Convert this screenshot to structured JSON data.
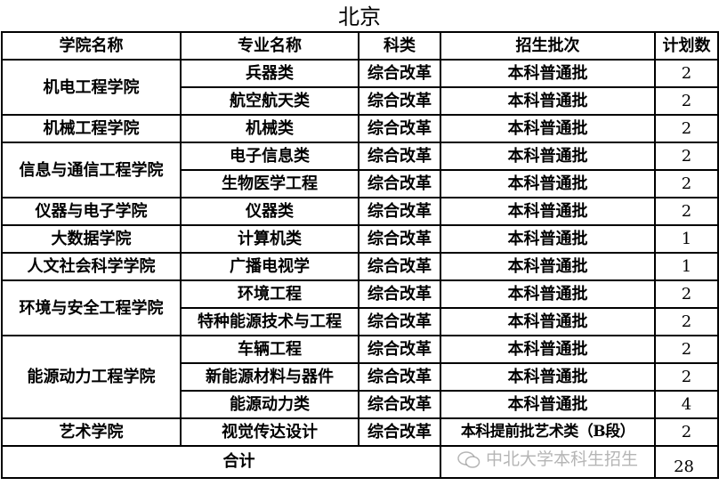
{
  "title": "北京",
  "headers": [
    "学院名称",
    "专业名称",
    "科类",
    "招生批次",
    "计划数"
  ],
  "groups": [
    {
      "college": "机电工程学院",
      "rows": [
        {
          "major": "兵器类",
          "category": "综合改革",
          "batch": "本科普通批",
          "plan": "2"
        },
        {
          "major": "航空航天类",
          "category": "综合改革",
          "batch": "本科普通批",
          "plan": "2"
        }
      ]
    },
    {
      "college": "机械工程学院",
      "rows": [
        {
          "major": "机械类",
          "category": "综合改革",
          "batch": "本科普通批",
          "plan": "2"
        }
      ]
    },
    {
      "college": "信息与通信工程学院",
      "rows": [
        {
          "major": "电子信息类",
          "category": "综合改革",
          "batch": "本科普通批",
          "plan": "2"
        },
        {
          "major": "生物医学工程",
          "category": "综合改革",
          "batch": "本科普通批",
          "plan": "2"
        }
      ]
    },
    {
      "college": "仪器与电子学院",
      "rows": [
        {
          "major": "仪器类",
          "category": "综合改革",
          "batch": "本科普通批",
          "plan": "2"
        }
      ]
    },
    {
      "college": "大数据学院",
      "rows": [
        {
          "major": "计算机类",
          "category": "综合改革",
          "batch": "本科普通批",
          "plan": "1"
        }
      ]
    },
    {
      "college": "人文社会科学学院",
      "rows": [
        {
          "major": "广播电视学",
          "category": "综合改革",
          "batch": "本科普通批",
          "plan": "1"
        }
      ]
    },
    {
      "college": "环境与安全工程学院",
      "rows": [
        {
          "major": "环境工程",
          "category": "综合改革",
          "batch": "本科普通批",
          "plan": "2"
        },
        {
          "major": "特种能源技术与工程",
          "category": "综合改革",
          "batch": "本科普通批",
          "plan": "2"
        }
      ]
    },
    {
      "college": "能源动力工程学院",
      "rows": [
        {
          "major": "车辆工程",
          "category": "综合改革",
          "batch": "本科普通批",
          "plan": "2"
        },
        {
          "major": "新能源材料与器件",
          "category": "综合改革",
          "batch": "本科普通批",
          "plan": "2"
        },
        {
          "major": "能源动力类",
          "category": "综合改革",
          "batch": "本科普通批",
          "plan": "4"
        }
      ]
    },
    {
      "college": "艺术学院",
      "rows": [
        {
          "major": "视觉传达设计",
          "category": "综合改革",
          "batch": "本科提前批艺术类（B段）",
          "plan": "2"
        }
      ]
    }
  ],
  "total": {
    "label": "合计",
    "value": "28"
  },
  "watermark": {
    "icon": "wechat-icon",
    "text": "中北大学本科生招生"
  }
}
